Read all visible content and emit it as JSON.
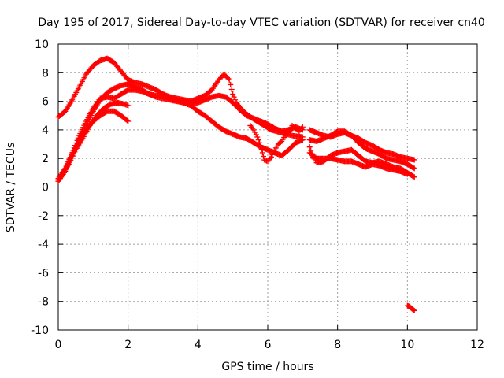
{
  "chart_data": {
    "type": "scatter",
    "title": "Day 195 of 2017, Sidereal Day-to-day VTEC variation (SDTVAR) for receiver cn40",
    "xlabel": "GPS time / hours",
    "ylabel": "SDTVAR / TECUs",
    "xlim": [
      0,
      12
    ],
    "ylim": [
      -10,
      10
    ],
    "xticks": [
      0,
      2,
      4,
      6,
      8,
      10,
      12
    ],
    "yticks": [
      -10,
      -8,
      -6,
      -4,
      -2,
      0,
      2,
      4,
      6,
      8,
      10
    ],
    "grid": true,
    "marker": "+",
    "color": "#ff0000",
    "series": [
      {
        "name": "track-1",
        "points": [
          [
            0.0,
            4.9
          ],
          [
            0.2,
            5.3
          ],
          [
            0.4,
            6.1
          ],
          [
            0.6,
            7.0
          ],
          [
            0.8,
            7.9
          ],
          [
            1.0,
            8.5
          ],
          [
            1.2,
            8.85
          ],
          [
            1.4,
            9.0
          ],
          [
            1.6,
            8.7
          ],
          [
            1.8,
            8.1
          ],
          [
            2.0,
            7.5
          ],
          [
            2.2,
            7.3
          ],
          [
            2.4,
            7.2
          ],
          [
            2.6,
            7.0
          ],
          [
            2.8,
            6.8
          ],
          [
            3.0,
            6.5
          ],
          [
            3.2,
            6.3
          ],
          [
            3.4,
            6.2
          ],
          [
            3.6,
            6.1
          ],
          [
            3.8,
            6.0
          ],
          [
            4.0,
            6.2
          ],
          [
            4.2,
            6.4
          ],
          [
            4.4,
            6.8
          ],
          [
            4.6,
            7.5
          ],
          [
            4.75,
            7.9
          ],
          [
            4.9,
            7.5
          ],
          [
            5.0,
            6.5
          ],
          [
            5.1,
            5.9
          ],
          [
            5.3,
            5.3
          ],
          [
            5.5,
            4.9
          ],
          [
            5.7,
            4.6
          ],
          [
            5.9,
            4.3
          ],
          [
            6.1,
            4.0
          ],
          [
            6.4,
            3.8
          ],
          [
            6.7,
            3.6
          ],
          [
            7.0,
            3.5
          ]
        ]
      },
      {
        "name": "track-2",
        "points": [
          [
            0.0,
            0.4
          ],
          [
            0.2,
            1.1
          ],
          [
            0.4,
            2.2
          ],
          [
            0.6,
            3.3
          ],
          [
            0.8,
            4.3
          ],
          [
            1.0,
            5.3
          ],
          [
            1.2,
            6.1
          ],
          [
            1.4,
            6.6
          ],
          [
            1.6,
            6.9
          ],
          [
            1.8,
            7.1
          ],
          [
            2.0,
            7.2
          ],
          [
            2.2,
            7.0
          ],
          [
            2.4,
            6.8
          ],
          [
            2.6,
            6.5
          ],
          [
            2.8,
            6.3
          ],
          [
            3.0,
            6.2
          ],
          [
            3.2,
            6.1
          ],
          [
            3.4,
            6.0
          ],
          [
            3.6,
            5.9
          ],
          [
            3.8,
            5.7
          ],
          [
            4.0,
            5.3
          ],
          [
            4.2,
            5.0
          ],
          [
            4.4,
            4.6
          ],
          [
            4.6,
            4.2
          ],
          [
            4.8,
            3.9
          ],
          [
            5.0,
            3.7
          ],
          [
            5.2,
            3.5
          ],
          [
            5.4,
            3.4
          ],
          [
            5.6,
            3.1
          ],
          [
            5.8,
            2.8
          ],
          [
            6.0,
            2.6
          ],
          [
            6.2,
            2.4
          ],
          [
            6.4,
            2.2
          ],
          [
            6.6,
            2.6
          ],
          [
            6.8,
            3.1
          ],
          [
            7.0,
            3.3
          ]
        ]
      },
      {
        "name": "track-3",
        "points": [
          [
            0.0,
            0.6
          ],
          [
            0.2,
            1.3
          ],
          [
            0.4,
            2.4
          ],
          [
            0.6,
            3.6
          ],
          [
            0.8,
            4.6
          ],
          [
            1.0,
            5.5
          ],
          [
            1.2,
            6.2
          ],
          [
            1.4,
            6.3
          ],
          [
            1.6,
            6.2
          ],
          [
            1.8,
            6.5
          ],
          [
            2.0,
            6.8
          ],
          [
            2.2,
            6.8
          ],
          [
            2.4,
            6.7
          ],
          [
            2.6,
            6.5
          ],
          [
            2.8,
            6.4
          ],
          [
            3.0,
            6.4
          ],
          [
            3.2,
            6.3
          ],
          [
            3.4,
            6.1
          ],
          [
            3.6,
            5.9
          ],
          [
            3.8,
            5.8
          ],
          [
            4.0,
            5.9
          ],
          [
            4.2,
            6.1
          ],
          [
            4.4,
            6.3
          ],
          [
            4.6,
            6.4
          ],
          [
            4.8,
            6.3
          ],
          [
            5.0,
            5.9
          ],
          [
            5.2,
            5.4
          ],
          [
            5.4,
            5.0
          ],
          [
            5.6,
            4.8
          ],
          [
            5.8,
            4.6
          ],
          [
            6.0,
            4.4
          ],
          [
            6.2,
            4.1
          ],
          [
            6.4,
            3.9
          ],
          [
            6.6,
            4.0
          ],
          [
            6.8,
            4.2
          ],
          [
            7.0,
            4.0
          ]
        ]
      },
      {
        "name": "track-4",
        "points": [
          [
            0.0,
            0.5
          ],
          [
            0.2,
            1.2
          ],
          [
            0.4,
            2.3
          ],
          [
            0.6,
            3.2
          ],
          [
            0.8,
            4.0
          ],
          [
            1.0,
            4.6
          ],
          [
            1.2,
            5.0
          ],
          [
            1.4,
            5.3
          ],
          [
            1.6,
            5.3
          ],
          [
            1.8,
            5.0
          ],
          [
            2.0,
            4.6
          ]
        ]
      },
      {
        "name": "track-5",
        "points": [
          [
            0.1,
            0.9
          ],
          [
            0.3,
            1.6
          ],
          [
            0.5,
            2.6
          ],
          [
            0.7,
            3.4
          ],
          [
            0.9,
            4.3
          ],
          [
            1.1,
            5.0
          ],
          [
            1.3,
            5.5
          ],
          [
            1.5,
            5.8
          ],
          [
            1.7,
            5.9
          ],
          [
            1.9,
            5.8
          ],
          [
            2.0,
            5.7
          ]
        ]
      },
      {
        "name": "track-6",
        "points": [
          [
            5.5,
            4.3
          ],
          [
            5.6,
            4.0
          ],
          [
            5.7,
            3.5
          ],
          [
            5.8,
            2.9
          ],
          [
            5.85,
            2.4
          ],
          [
            5.9,
            1.9
          ],
          [
            6.0,
            1.8
          ],
          [
            6.1,
            2.1
          ],
          [
            6.2,
            2.6
          ],
          [
            6.3,
            3.0
          ],
          [
            6.4,
            3.2
          ],
          [
            6.5,
            3.6
          ],
          [
            6.6,
            3.9
          ],
          [
            6.7,
            4.3
          ],
          [
            6.8,
            4.1
          ],
          [
            6.9,
            3.9
          ],
          [
            7.0,
            4.2
          ]
        ]
      },
      {
        "name": "track-7",
        "points": [
          [
            7.2,
            4.0
          ],
          [
            7.4,
            3.8
          ],
          [
            7.6,
            3.6
          ],
          [
            7.8,
            3.5
          ],
          [
            8.0,
            3.7
          ],
          [
            8.2,
            3.8
          ],
          [
            8.4,
            3.6
          ],
          [
            8.6,
            3.4
          ],
          [
            8.8,
            3.1
          ],
          [
            9.0,
            2.9
          ],
          [
            9.2,
            2.6
          ],
          [
            9.4,
            2.4
          ],
          [
            9.6,
            2.3
          ],
          [
            9.8,
            2.1
          ],
          [
            10.0,
            2.0
          ],
          [
            10.2,
            1.9
          ]
        ]
      },
      {
        "name": "track-8",
        "points": [
          [
            7.2,
            3.3
          ],
          [
            7.4,
            3.2
          ],
          [
            7.6,
            3.4
          ],
          [
            7.8,
            3.6
          ],
          [
            8.0,
            3.9
          ],
          [
            8.2,
            3.9
          ],
          [
            8.4,
            3.6
          ],
          [
            8.6,
            3.1
          ],
          [
            8.8,
            2.7
          ],
          [
            9.0,
            2.5
          ],
          [
            9.2,
            2.3
          ],
          [
            9.4,
            2.0
          ],
          [
            9.6,
            1.9
          ],
          [
            9.8,
            1.8
          ],
          [
            10.0,
            1.6
          ],
          [
            10.2,
            1.3
          ]
        ]
      },
      {
        "name": "track-9",
        "points": [
          [
            7.2,
            2.8
          ],
          [
            7.3,
            2.1
          ],
          [
            7.4,
            1.7
          ],
          [
            7.6,
            1.8
          ],
          [
            7.8,
            2.2
          ],
          [
            8.0,
            2.4
          ],
          [
            8.2,
            2.5
          ],
          [
            8.4,
            2.6
          ],
          [
            8.6,
            2.2
          ],
          [
            8.8,
            1.8
          ],
          [
            9.0,
            1.7
          ],
          [
            9.2,
            1.8
          ],
          [
            9.4,
            1.6
          ],
          [
            9.6,
            1.4
          ],
          [
            9.8,
            1.3
          ],
          [
            10.0,
            1.0
          ],
          [
            10.2,
            0.7
          ]
        ]
      },
      {
        "name": "track-10",
        "points": [
          [
            7.2,
            2.4
          ],
          [
            7.4,
            2.0
          ],
          [
            7.6,
            2.0
          ],
          [
            7.8,
            2.0
          ],
          [
            8.0,
            1.9
          ],
          [
            8.2,
            1.8
          ],
          [
            8.4,
            1.8
          ],
          [
            8.6,
            1.6
          ],
          [
            8.8,
            1.4
          ],
          [
            9.0,
            1.6
          ],
          [
            9.2,
            1.5
          ],
          [
            9.4,
            1.3
          ],
          [
            9.6,
            1.2
          ],
          [
            9.8,
            1.1
          ],
          [
            10.0,
            0.9
          ]
        ]
      },
      {
        "name": "track-11",
        "points": [
          [
            10.0,
            -8.3
          ],
          [
            10.05,
            -8.35
          ],
          [
            10.1,
            -8.45
          ],
          [
            10.15,
            -8.55
          ],
          [
            10.2,
            -8.65
          ]
        ]
      }
    ]
  }
}
